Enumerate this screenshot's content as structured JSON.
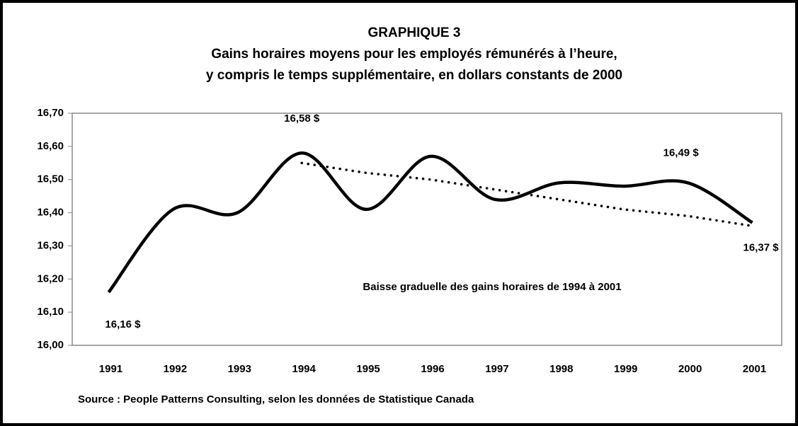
{
  "chart_data": {
    "type": "line",
    "title": "GRAPHIQUE 3",
    "subtitle": [
      "Gains horaires moyens pour les employés rémunérés à l’heure,",
      "y compris le temps supplémentaire, en dollars constants de 2000"
    ],
    "categories": [
      "1991",
      "1992",
      "1993",
      "1994",
      "1995",
      "1996",
      "1997",
      "1998",
      "1999",
      "2000",
      "2001"
    ],
    "series": [
      {
        "color": "#000000",
        "style": "solid",
        "values": [
          16.16,
          16.41,
          16.4,
          16.58,
          16.41,
          16.57,
          16.44,
          16.49,
          16.48,
          16.49,
          16.37
        ],
        "value_labels": [
          "16,16 $",
          null,
          null,
          "16,58 $",
          null,
          null,
          null,
          null,
          null,
          "16,49 $",
          "16,37 $"
        ]
      },
      {
        "color": "#000000",
        "style": "dotted",
        "values": [
          null,
          null,
          null,
          16.55,
          16.52,
          16.5,
          16.47,
          16.44,
          16.41,
          16.39,
          16.36
        ]
      }
    ],
    "annotation": "Baisse graduelle des gains horaires de 1994 à  2001",
    "source": "Source : People Patterns Consulting, selon les données de Statistique Canada",
    "ylim": [
      16.0,
      16.7
    ],
    "yticks": [
      {
        "value": 16.0,
        "label": "16,00"
      },
      {
        "value": 16.1,
        "label": "16,10"
      },
      {
        "value": 16.2,
        "label": "16,20"
      },
      {
        "value": 16.3,
        "label": "16,30"
      },
      {
        "value": 16.4,
        "label": "16,40"
      },
      {
        "value": 16.5,
        "label": "16,50"
      },
      {
        "value": 16.6,
        "label": "16,60"
      },
      {
        "value": 16.7,
        "label": "16,70"
      }
    ]
  }
}
